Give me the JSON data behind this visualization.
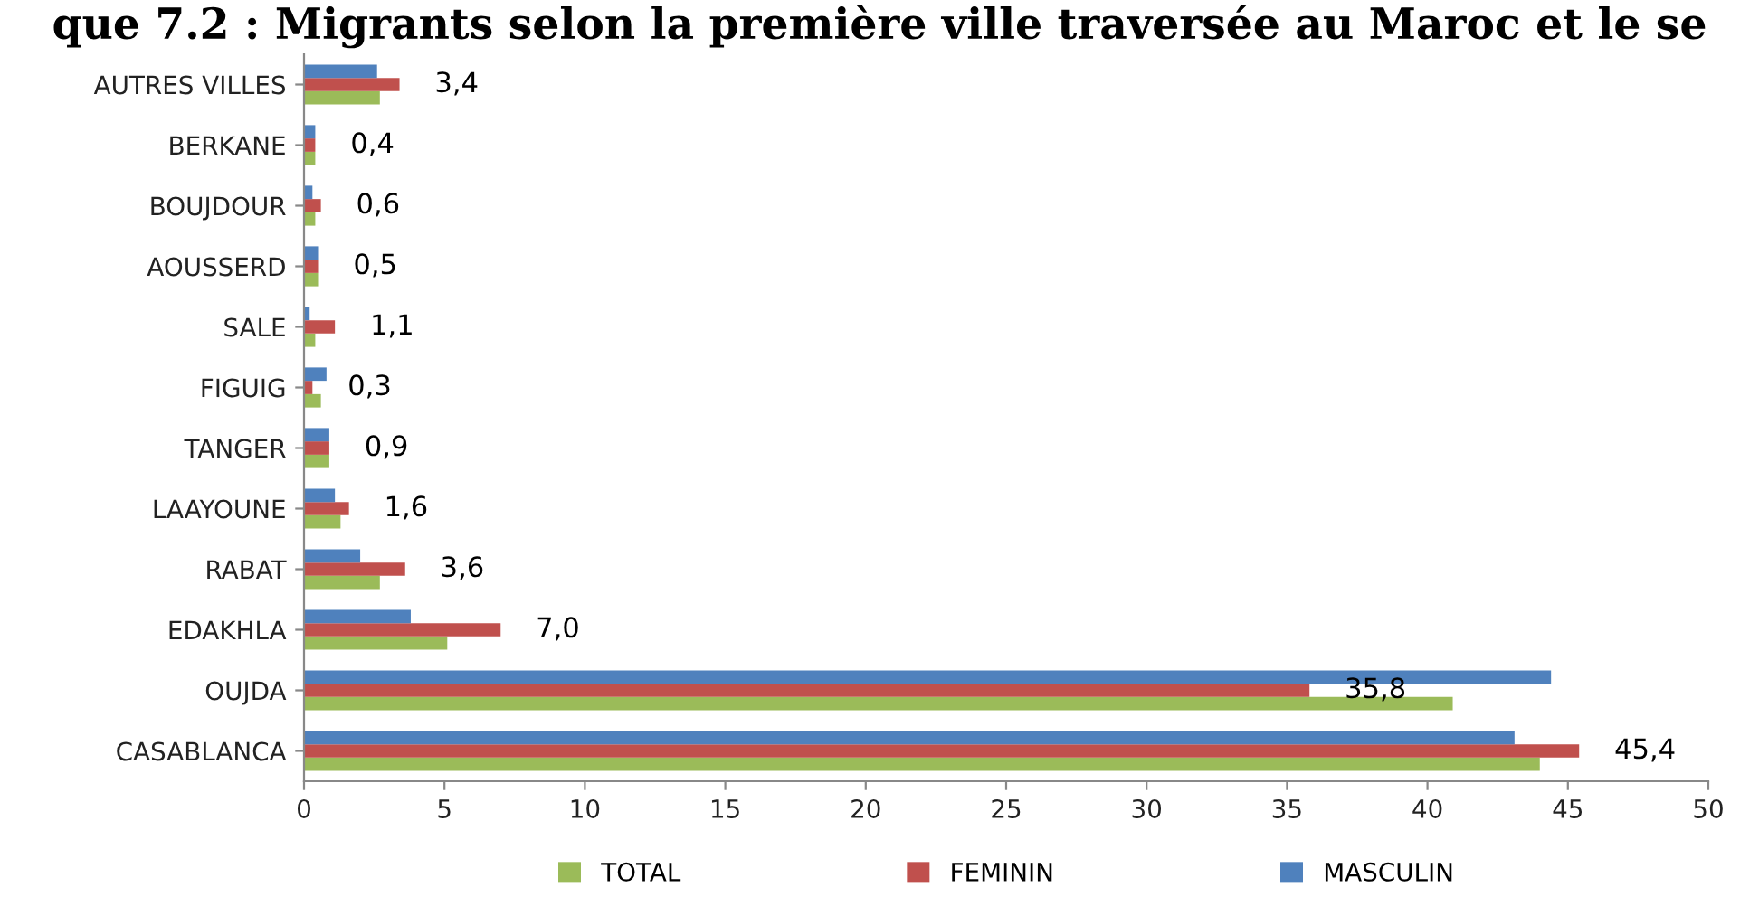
{
  "chart_data": {
    "type": "bar",
    "orientation": "horizontal",
    "title": "que 7.2 : Migrants selon la première ville traversée au Maroc et le se",
    "categories": [
      "AUTRES VILLES",
      "BERKANE",
      "BOUJDOUR",
      "AOUSSERD",
      "SALE",
      "FIGUIG",
      "TANGER",
      "LAAYOUNE",
      "RABAT",
      "EDAKHLA",
      "OUJDA",
      "CASABLANCA"
    ],
    "series": [
      {
        "name": "TOTAL",
        "color": "#9bbb59",
        "values": [
          2.7,
          0.4,
          0.4,
          0.5,
          0.4,
          0.6,
          0.9,
          1.3,
          2.7,
          5.1,
          40.9,
          44.0
        ]
      },
      {
        "name": "FEMININ",
        "color": "#c0504d",
        "values": [
          3.4,
          0.4,
          0.6,
          0.5,
          1.1,
          0.3,
          0.9,
          1.6,
          3.6,
          7.0,
          35.8,
          45.4
        ],
        "value_labels": [
          "3,4",
          "0,4",
          "0,6",
          "0,5",
          "1,1",
          "0,3",
          "0,9",
          "1,6",
          "3,6",
          "7,0",
          "35,8",
          "45,4"
        ]
      },
      {
        "name": "MASCULIN",
        "color": "#4f81bd",
        "values": [
          2.6,
          0.4,
          0.3,
          0.5,
          0.2,
          0.8,
          0.9,
          1.1,
          2.0,
          3.8,
          44.4,
          43.1
        ]
      }
    ],
    "xlim": [
      0,
      50
    ],
    "xticks": [
      0,
      5,
      10,
      15,
      20,
      25,
      30,
      35,
      40,
      45,
      50
    ],
    "grid": false,
    "legend": "bottom"
  }
}
